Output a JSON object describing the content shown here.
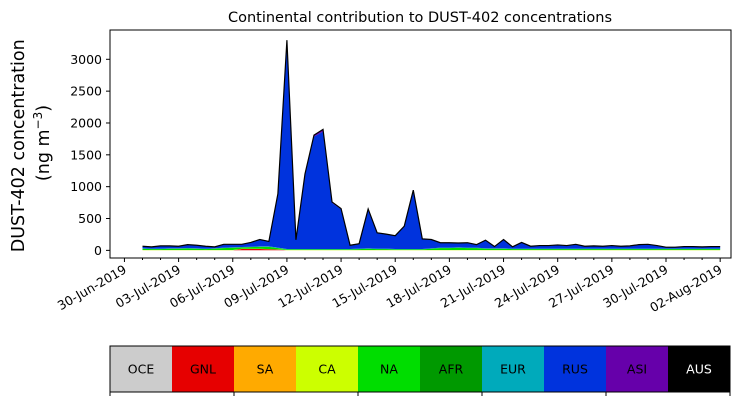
{
  "chart_data": {
    "type": "area",
    "stacked": true,
    "title": "Continental contribution to DUST-402 concentrations",
    "ylabel_line1": "DUST-402 concentration",
    "ylabel_line2_prefix": "(ng m",
    "ylabel_line2_sup": "−3",
    "ylabel_line2_suffix": ")",
    "xlabel": "",
    "ylim": [
      -120,
      3460
    ],
    "yticks": [
      0,
      500,
      1000,
      1500,
      2000,
      2500,
      3000
    ],
    "xticks": [
      "30-Jun-2019",
      "03-Jul-2019",
      "06-Jul-2019",
      "09-Jul-2019",
      "12-Jul-2019",
      "15-Jul-2019",
      "18-Jul-2019",
      "21-Jul-2019",
      "24-Jul-2019",
      "27-Jul-2019",
      "30-Jul-2019",
      "02-Aug-2019"
    ],
    "x_start": "30-Jun-2019",
    "x_range_days": [
      -0.8,
      33.6
    ],
    "x_step_days": 0.5,
    "x_first_day": 1.0,
    "grid": false,
    "legend_position": "bottom",
    "series": [
      {
        "name": "OCE",
        "color": "#cccccc",
        "values": [
          2,
          2,
          2,
          2,
          2,
          2,
          2,
          2,
          2,
          2,
          2,
          2,
          2,
          2,
          2,
          2,
          2,
          2,
          2,
          2,
          2,
          2,
          2,
          2,
          2,
          2,
          2,
          2,
          2,
          2,
          2,
          2,
          2,
          2,
          2,
          2,
          2,
          2,
          2,
          2,
          2,
          2,
          2,
          2,
          2,
          2,
          2,
          2,
          2,
          2,
          2,
          2,
          2,
          2,
          2,
          2,
          2,
          2,
          2,
          2,
          2,
          2,
          2,
          2,
          2
        ]
      },
      {
        "name": "GNL",
        "color": "#e60000",
        "values": [
          0,
          0,
          0,
          0,
          0,
          0,
          0,
          0,
          0,
          0,
          0,
          20,
          20,
          20,
          15,
          10,
          0,
          0,
          0,
          0,
          0,
          0,
          0,
          0,
          0,
          0,
          0,
          0,
          0,
          0,
          0,
          0,
          0,
          0,
          0,
          0,
          0,
          0,
          0,
          0,
          0,
          0,
          0,
          0,
          0,
          0,
          0,
          0,
          0,
          0,
          0,
          0,
          0,
          0,
          0,
          0,
          0,
          0,
          0,
          0,
          0,
          0,
          0,
          0,
          0
        ]
      },
      {
        "name": "SA",
        "color": "#ffaa00",
        "values": [
          0,
          0,
          0,
          0,
          0,
          0,
          0,
          0,
          0,
          0,
          0,
          0,
          0,
          0,
          0,
          0,
          0,
          0,
          0,
          0,
          0,
          0,
          0,
          0,
          0,
          0,
          0,
          0,
          0,
          0,
          0,
          0,
          0,
          0,
          0,
          0,
          0,
          0,
          0,
          0,
          0,
          0,
          0,
          0,
          0,
          0,
          0,
          0,
          0,
          0,
          0,
          0,
          0,
          0,
          0,
          0,
          0,
          0,
          0,
          0,
          0,
          0,
          0,
          0,
          0
        ]
      },
      {
        "name": "CA",
        "color": "#ccff00",
        "values": [
          3,
          3,
          3,
          3,
          3,
          3,
          3,
          3,
          3,
          3,
          3,
          3,
          3,
          3,
          3,
          3,
          3,
          3,
          3,
          3,
          3,
          3,
          3,
          3,
          3,
          3,
          3,
          3,
          3,
          3,
          3,
          3,
          3,
          3,
          3,
          3,
          3,
          3,
          3,
          3,
          3,
          3,
          3,
          3,
          3,
          3,
          3,
          3,
          3,
          3,
          3,
          3,
          3,
          3,
          3,
          3,
          3,
          3,
          3,
          3,
          3,
          3,
          3,
          3,
          3
        ]
      },
      {
        "name": "NA",
        "color": "#00dd00",
        "values": [
          20,
          15,
          15,
          20,
          20,
          25,
          20,
          15,
          20,
          30,
          35,
          20,
          25,
          30,
          35,
          20,
          10,
          10,
          10,
          10,
          10,
          10,
          10,
          10,
          15,
          20,
          15,
          15,
          10,
          10,
          10,
          10,
          20,
          30,
          30,
          35,
          30,
          30,
          20,
          20,
          20,
          15,
          15,
          15,
          15,
          15,
          15,
          15,
          15,
          15,
          15,
          15,
          15,
          15,
          15,
          15,
          15,
          15,
          15,
          15,
          15,
          15,
          15,
          15,
          15
        ]
      },
      {
        "name": "AFR",
        "color": "#009900",
        "values": [
          2,
          2,
          2,
          2,
          2,
          2,
          2,
          2,
          2,
          2,
          2,
          2,
          2,
          2,
          2,
          2,
          2,
          2,
          2,
          2,
          2,
          2,
          2,
          2,
          2,
          2,
          2,
          2,
          2,
          2,
          2,
          2,
          2,
          2,
          2,
          2,
          2,
          2,
          2,
          2,
          2,
          2,
          2,
          2,
          2,
          2,
          2,
          2,
          2,
          2,
          2,
          2,
          2,
          2,
          2,
          2,
          2,
          2,
          2,
          2,
          2,
          2,
          2,
          2,
          2
        ]
      },
      {
        "name": "EUR",
        "color": "#00aabb",
        "values": [
          5,
          5,
          5,
          5,
          5,
          5,
          5,
          5,
          5,
          5,
          5,
          5,
          5,
          5,
          5,
          5,
          5,
          5,
          5,
          5,
          5,
          5,
          5,
          5,
          5,
          5,
          5,
          5,
          5,
          5,
          5,
          5,
          5,
          5,
          5,
          5,
          5,
          5,
          5,
          5,
          5,
          5,
          5,
          5,
          5,
          5,
          5,
          5,
          5,
          5,
          5,
          5,
          5,
          5,
          5,
          5,
          5,
          5,
          5,
          5,
          5,
          5,
          5,
          5,
          5
        ]
      },
      {
        "name": "RUS",
        "color": "#0033dd",
        "values": [
          28,
          23,
          38,
          33,
          28,
          48,
          43,
          33,
          18,
          48,
          43,
          38,
          63,
          103,
          73,
          843,
          3268,
          138,
          1168,
          1763,
          1843,
          723,
          623,
          53,
          73,
          613,
          243,
          223,
          203,
          353,
          913,
          153,
          133,
          73,
          73,
          63,
          73,
          43,
          123,
          23,
          133,
          23,
          93,
          33,
          43,
          43,
          53,
          43,
          63,
          33,
          38,
          33,
          43,
          33,
          38,
          58,
          63,
          43,
          18,
          18,
          28,
          28,
          23,
          28,
          28
        ]
      },
      {
        "name": "ASI",
        "color": "#6600aa",
        "values": [
          5,
          5,
          5,
          5,
          5,
          5,
          5,
          5,
          5,
          5,
          5,
          5,
          5,
          5,
          5,
          5,
          10,
          5,
          10,
          25,
          35,
          15,
          10,
          5,
          5,
          5,
          5,
          5,
          5,
          5,
          10,
          5,
          5,
          5,
          5,
          5,
          5,
          5,
          5,
          5,
          5,
          5,
          5,
          5,
          5,
          5,
          5,
          5,
          5,
          5,
          5,
          5,
          5,
          5,
          5,
          5,
          5,
          5,
          5,
          5,
          5,
          5,
          5,
          5,
          5
        ]
      },
      {
        "name": "AUS",
        "color": "#000000",
        "values": [
          0,
          0,
          0,
          0,
          0,
          0,
          0,
          0,
          0,
          0,
          0,
          0,
          0,
          0,
          0,
          0,
          0,
          0,
          0,
          0,
          0,
          0,
          0,
          0,
          0,
          0,
          0,
          0,
          0,
          0,
          0,
          0,
          0,
          0,
          0,
          0,
          0,
          0,
          0,
          0,
          0,
          0,
          0,
          0,
          0,
          0,
          0,
          0,
          0,
          0,
          0,
          0,
          0,
          0,
          0,
          0,
          0,
          0,
          0,
          0,
          0,
          0,
          0,
          0,
          0
        ]
      }
    ]
  }
}
